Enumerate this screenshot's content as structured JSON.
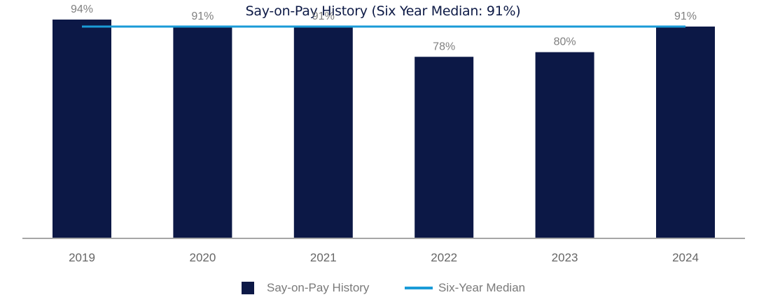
{
  "chart_data": {
    "type": "bar",
    "title": "Say-on-Pay History (Six Year Median: 91%)",
    "categories": [
      "2019",
      "2020",
      "2021",
      "2022",
      "2023",
      "2024"
    ],
    "series": [
      {
        "name": "Say-on-Pay History",
        "type": "bar",
        "values": [
          94,
          91,
          91,
          78,
          80,
          91
        ],
        "labels": [
          "94%",
          "91%",
          "91%",
          "78%",
          "80%",
          "91%"
        ],
        "color": "#0c1846"
      },
      {
        "name": "Six-Year Median",
        "type": "line",
        "values": [
          91,
          91,
          91,
          91,
          91,
          91
        ],
        "color": "#1a9bd7"
      }
    ],
    "ylim": [
      0,
      100
    ],
    "grid": false,
    "legend": "bottom",
    "axis_color": "#a6a6a6"
  }
}
